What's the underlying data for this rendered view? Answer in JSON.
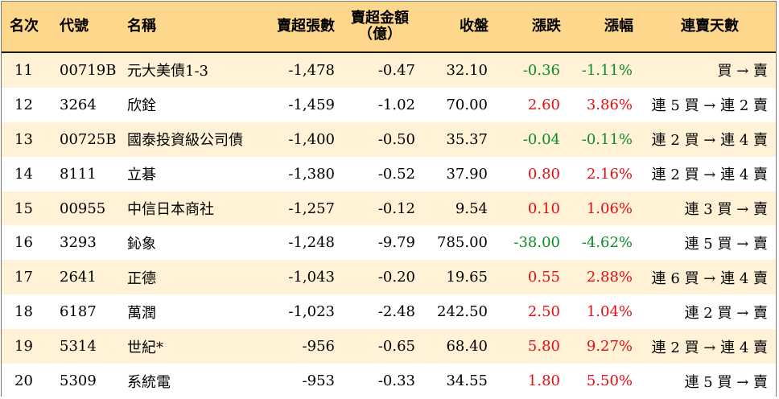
{
  "header": {
    "rank": "名次",
    "code": "代號",
    "name": "名稱",
    "net_sell_lots": "賣超張數",
    "net_sell_amount_line1": "賣超金額",
    "net_sell_amount_line2": "（億）",
    "close": "收盤",
    "change": "漲跌",
    "change_pct": "漲幅",
    "streak": "連賣天數"
  },
  "colors": {
    "header_bg": "#fdd78b",
    "stripe_bg": "#fff2d6",
    "up": "#e10f14",
    "down": "#0d8a2a"
  },
  "rows": [
    {
      "rank": "11",
      "code": "00719B",
      "name": "元大美債1-3",
      "lots": "-1,478",
      "amount": "-0.47",
      "close": "32.10",
      "change": "-0.36",
      "pct": "-1.11%",
      "streak": "買 → 賣",
      "dir": "down"
    },
    {
      "rank": "12",
      "code": "3264",
      "name": "欣銓",
      "lots": "-1,459",
      "amount": "-1.02",
      "close": "70.00",
      "change": "2.60",
      "pct": "3.86%",
      "streak": "連 5 買 → 連 2 賣",
      "dir": "up"
    },
    {
      "rank": "13",
      "code": "00725B",
      "name": "國泰投資級公司債",
      "lots": "-1,400",
      "amount": "-0.50",
      "close": "35.37",
      "change": "-0.04",
      "pct": "-0.11%",
      "streak": "連 2 買 → 連 4 賣",
      "dir": "down"
    },
    {
      "rank": "14",
      "code": "8111",
      "name": "立碁",
      "lots": "-1,380",
      "amount": "-0.52",
      "close": "37.90",
      "change": "0.80",
      "pct": "2.16%",
      "streak": "連 2 買 → 連 4 賣",
      "dir": "up"
    },
    {
      "rank": "15",
      "code": "00955",
      "name": "中信日本商社",
      "lots": "-1,257",
      "amount": "-0.12",
      "close": "9.54",
      "change": "0.10",
      "pct": "1.06%",
      "streak": "連 3 買 → 賣",
      "dir": "up"
    },
    {
      "rank": "16",
      "code": "3293",
      "name": "鈊象",
      "lots": "-1,248",
      "amount": "-9.79",
      "close": "785.00",
      "change": "-38.00",
      "pct": "-4.62%",
      "streak": "連 5 買 → 賣",
      "dir": "down"
    },
    {
      "rank": "17",
      "code": "2641",
      "name": "正德",
      "lots": "-1,043",
      "amount": "-0.20",
      "close": "19.65",
      "change": "0.55",
      "pct": "2.88%",
      "streak": "連 6 買 → 連 4 賣",
      "dir": "up"
    },
    {
      "rank": "18",
      "code": "6187",
      "name": "萬潤",
      "lots": "-1,023",
      "amount": "-2.48",
      "close": "242.50",
      "change": "2.50",
      "pct": "1.04%",
      "streak": "連 2 買 → 賣",
      "dir": "up"
    },
    {
      "rank": "19",
      "code": "5314",
      "name": "世紀*",
      "lots": "-956",
      "amount": "-0.65",
      "close": "68.40",
      "change": "5.80",
      "pct": "9.27%",
      "streak": "連 2 買 → 連 4 賣",
      "dir": "up"
    },
    {
      "rank": "20",
      "code": "5309",
      "name": "系統電",
      "lots": "-953",
      "amount": "-0.33",
      "close": "34.55",
      "change": "1.80",
      "pct": "5.50%",
      "streak": "連 5 買 → 賣",
      "dir": "up"
    }
  ]
}
